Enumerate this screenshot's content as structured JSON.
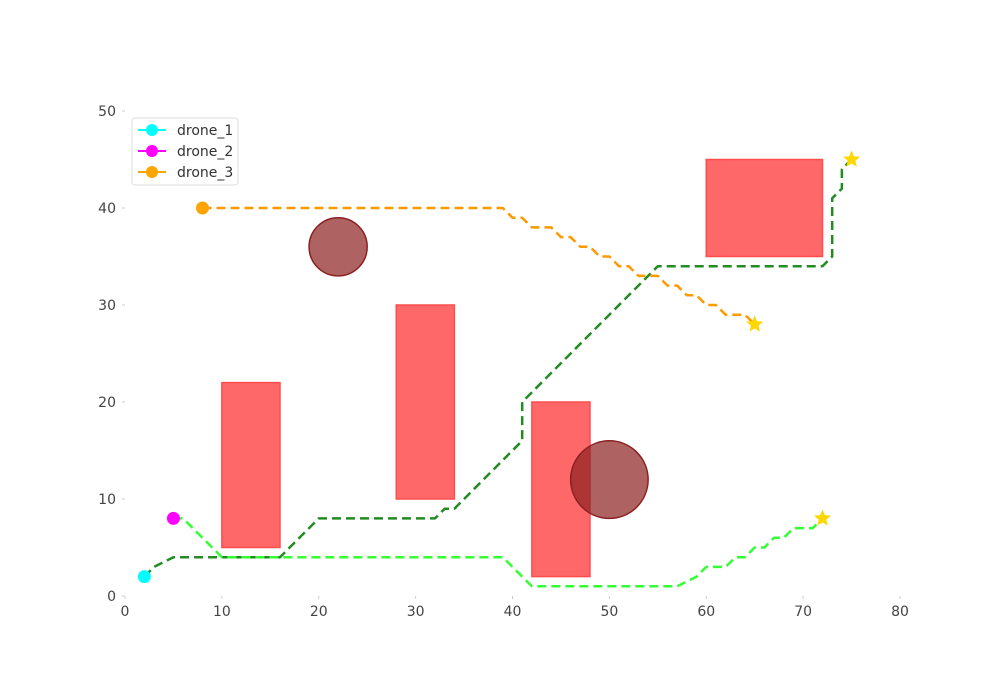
{
  "chart_data": {
    "type": "scatter",
    "xlim": [
      0,
      80
    ],
    "ylim": [
      0,
      50
    ],
    "x_ticks": [
      0,
      10,
      20,
      30,
      40,
      50,
      60,
      70,
      80
    ],
    "y_ticks": [
      0,
      10,
      20,
      30,
      40,
      50
    ],
    "grid": false,
    "legend_placement": "top-left",
    "obstacles": {
      "rectangles": [
        {
          "x": 10,
          "y": 5,
          "width": 6,
          "height": 17
        },
        {
          "x": 28,
          "y": 10,
          "width": 6,
          "height": 20
        },
        {
          "x": 42,
          "y": 2,
          "width": 6,
          "height": 18
        },
        {
          "x": 60,
          "y": 35,
          "width": 12,
          "height": 10
        }
      ],
      "circles": [
        {
          "cx": 22,
          "cy": 36,
          "r": 3
        },
        {
          "cx": 50,
          "cy": 12,
          "r": 4
        }
      ],
      "rect_color": "#ff4d4d",
      "circle_color": "#8b2020"
    },
    "series": [
      {
        "name": "drone_1",
        "color": "#00ffff",
        "path_color": "#228b22",
        "start": [
          2,
          2
        ],
        "goal": [
          75,
          45
        ],
        "path": [
          [
            2,
            2
          ],
          [
            3,
            3
          ],
          [
            5,
            4
          ],
          [
            16,
            4
          ],
          [
            20,
            8
          ],
          [
            32,
            8
          ],
          [
            33,
            9
          ],
          [
            34,
            9
          ],
          [
            41,
            16
          ],
          [
            41,
            20
          ],
          [
            55,
            34
          ],
          [
            72,
            34
          ],
          [
            73,
            35
          ],
          [
            73,
            41
          ],
          [
            74,
            42
          ],
          [
            74,
            44
          ],
          [
            75,
            45
          ]
        ]
      },
      {
        "name": "drone_2",
        "color": "#ff00ff",
        "path_color": "#33ff33",
        "start": [
          5,
          8
        ],
        "goal": [
          72,
          8
        ],
        "path": [
          [
            5,
            8
          ],
          [
            6,
            8
          ],
          [
            10,
            4
          ],
          [
            39,
            4
          ],
          [
            40,
            3
          ],
          [
            42,
            1
          ],
          [
            57,
            1
          ],
          [
            59,
            2
          ],
          [
            60,
            3
          ],
          [
            62,
            3
          ],
          [
            63,
            4
          ],
          [
            64,
            4
          ],
          [
            65,
            5
          ],
          [
            66,
            5
          ],
          [
            67,
            6
          ],
          [
            68,
            6
          ],
          [
            69,
            7
          ],
          [
            71,
            7
          ],
          [
            72,
            8
          ]
        ]
      },
      {
        "name": "drone_3",
        "color": "#ffa500",
        "path_color": "#ff9900",
        "start": [
          8,
          40
        ],
        "goal": [
          65,
          28
        ],
        "path": [
          [
            8,
            40
          ],
          [
            39,
            40
          ],
          [
            40,
            39
          ],
          [
            41,
            39
          ],
          [
            42,
            38
          ],
          [
            44,
            38
          ],
          [
            45,
            37
          ],
          [
            46,
            37
          ],
          [
            47,
            36
          ],
          [
            48,
            36
          ],
          [
            49,
            35
          ],
          [
            50,
            35
          ],
          [
            51,
            34
          ],
          [
            52,
            34
          ],
          [
            53,
            33
          ],
          [
            55,
            33
          ],
          [
            56,
            32
          ],
          [
            57,
            32
          ],
          [
            58,
            31
          ],
          [
            59,
            31
          ],
          [
            60,
            30
          ],
          [
            61,
            30
          ],
          [
            62,
            29
          ],
          [
            64,
            29
          ],
          [
            65,
            28
          ]
        ]
      }
    ],
    "goal_color": "#ffd700"
  }
}
